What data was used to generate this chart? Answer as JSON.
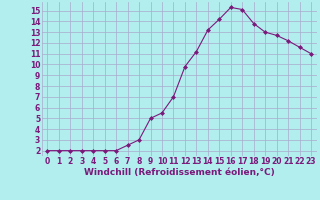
{
  "x": [
    0,
    1,
    2,
    3,
    4,
    5,
    6,
    7,
    8,
    9,
    10,
    11,
    12,
    13,
    14,
    15,
    16,
    17,
    18,
    19,
    20,
    21,
    22,
    23
  ],
  "y": [
    2,
    2,
    2,
    2,
    2,
    2,
    2,
    2.5,
    3,
    5,
    5.5,
    7,
    9.8,
    11.2,
    13.2,
    14.2,
    15.3,
    15.1,
    13.8,
    13.0,
    12.7,
    12.2,
    11.6,
    11.0
  ],
  "line_color": "#7B1A7B",
  "marker": "D",
  "marker_size": 2,
  "bg_color": "#b2eeee",
  "grid_color": "#aaaacc",
  "xlabel": "Windchill (Refroidissement éolien,°C)",
  "xlabel_color": "#7B1A7B",
  "xlim": [
    -0.5,
    23.5
  ],
  "ylim": [
    1.5,
    15.8
  ],
  "xticks": [
    0,
    1,
    2,
    3,
    4,
    5,
    6,
    7,
    8,
    9,
    10,
    11,
    12,
    13,
    14,
    15,
    16,
    17,
    18,
    19,
    20,
    21,
    22,
    23
  ],
  "yticks": [
    2,
    3,
    4,
    5,
    6,
    7,
    8,
    9,
    10,
    11,
    12,
    13,
    14,
    15
  ],
  "tick_color": "#7B1A7B",
  "tick_fontsize": 5.5,
  "xlabel_fontsize": 6.5,
  "xlabel_fontweight": "bold"
}
